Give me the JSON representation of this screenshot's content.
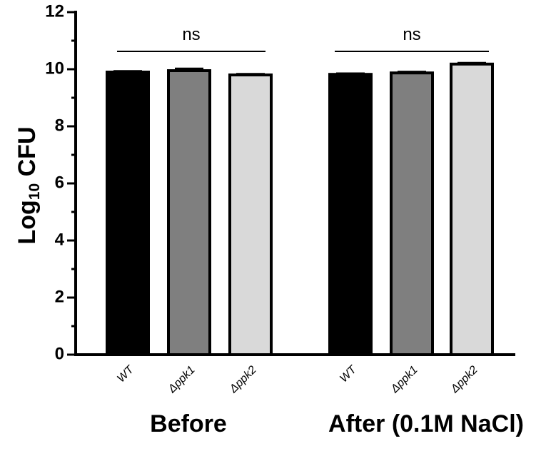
{
  "chart_data": {
    "type": "bar",
    "ylabel": {
      "main": "Log",
      "sub": "10",
      "suffix": " CFU"
    },
    "ylim": [
      0,
      12
    ],
    "yticks": [
      "0",
      "2",
      "4",
      "6",
      "8",
      "10",
      "12"
    ],
    "groups": [
      {
        "name": "Before",
        "significance": "ns",
        "bars": [
          {
            "label": "WT",
            "value": 9.9,
            "error": 0.03,
            "color": "#000000"
          },
          {
            "label": "Δppk1",
            "value": 9.95,
            "error": 0.07,
            "color": "#7f7f7f"
          },
          {
            "label": "Δppk2",
            "value": 9.8,
            "error": 0.03,
            "color": "#d9d9d9"
          }
        ]
      },
      {
        "name": "After (0.1M NaCl)",
        "significance": "ns",
        "bars": [
          {
            "label": "WT",
            "value": 9.82,
            "error": 0.03,
            "color": "#000000"
          },
          {
            "label": "Δppk1",
            "value": 9.87,
            "error": 0.04,
            "color": "#7f7f7f"
          },
          {
            "label": "Δppk2",
            "value": 10.18,
            "error": 0.04,
            "color": "#d9d9d9"
          }
        ]
      }
    ],
    "grid": false,
    "legend": "none"
  }
}
